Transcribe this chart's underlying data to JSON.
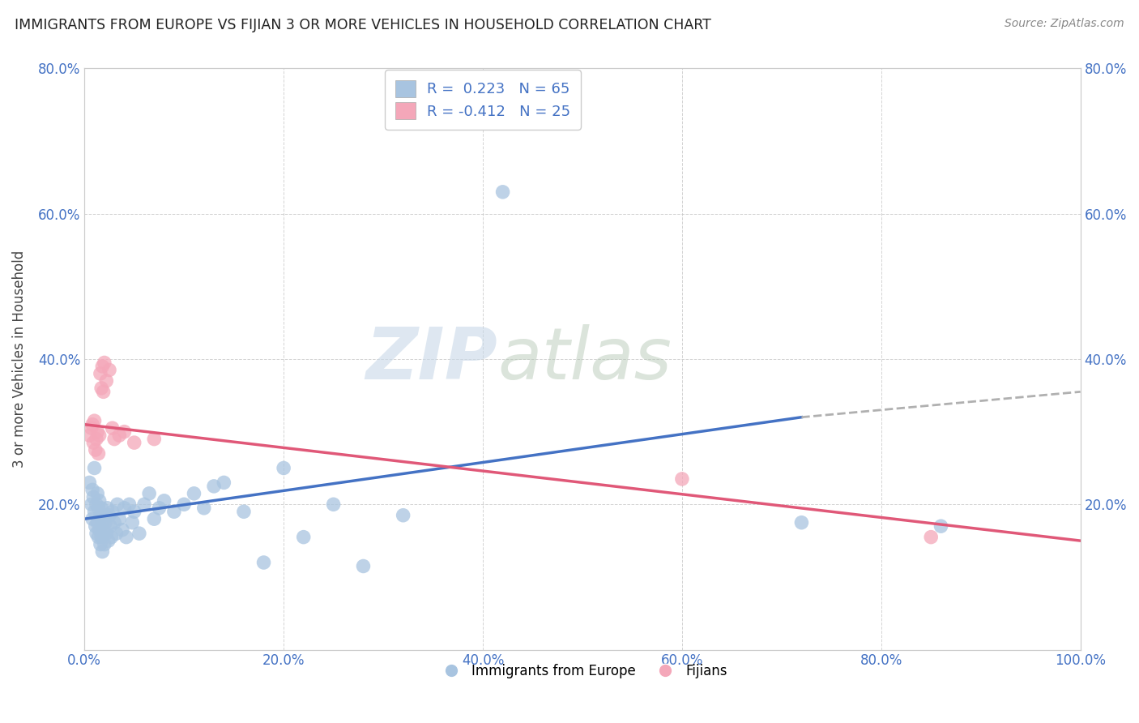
{
  "title": "IMMIGRANTS FROM EUROPE VS FIJIAN 3 OR MORE VEHICLES IN HOUSEHOLD CORRELATION CHART",
  "source": "Source: ZipAtlas.com",
  "ylabel": "3 or more Vehicles in Household",
  "xlim": [
    0,
    1.0
  ],
  "ylim": [
    0,
    0.8
  ],
  "xticks": [
    0.0,
    0.2,
    0.4,
    0.6,
    0.8,
    1.0
  ],
  "yticks": [
    0.0,
    0.2,
    0.4,
    0.6,
    0.8
  ],
  "xtick_labels": [
    "0.0%",
    "20.0%",
    "40.0%",
    "60.0%",
    "80.0%",
    "100.0%"
  ],
  "ytick_labels": [
    "",
    "20.0%",
    "40.0%",
    "60.0%",
    "80.0%"
  ],
  "legend_r1": "R =  0.223",
  "legend_n1": "N = 65",
  "legend_r2": "R = -0.412",
  "legend_n2": "N = 25",
  "color_blue": "#a8c4e0",
  "color_pink": "#f4a7b9",
  "color_blue_line": "#4472c4",
  "color_pink_line": "#e05878",
  "color_dashed_line": "#b0b0b0",
  "watermark_zip": "ZIP",
  "watermark_atlas": "atlas",
  "blue_scatter_x": [
    0.005,
    0.007,
    0.008,
    0.008,
    0.009,
    0.01,
    0.01,
    0.011,
    0.012,
    0.012,
    0.013,
    0.013,
    0.014,
    0.014,
    0.015,
    0.015,
    0.016,
    0.016,
    0.017,
    0.017,
    0.018,
    0.018,
    0.019,
    0.02,
    0.02,
    0.021,
    0.022,
    0.023,
    0.024,
    0.025,
    0.026,
    0.027,
    0.028,
    0.03,
    0.032,
    0.033,
    0.035,
    0.038,
    0.04,
    0.042,
    0.045,
    0.048,
    0.05,
    0.055,
    0.06,
    0.065,
    0.07,
    0.075,
    0.08,
    0.09,
    0.1,
    0.11,
    0.12,
    0.13,
    0.14,
    0.16,
    0.18,
    0.2,
    0.22,
    0.25,
    0.28,
    0.32,
    0.42,
    0.72,
    0.86
  ],
  "blue_scatter_y": [
    0.23,
    0.2,
    0.22,
    0.18,
    0.21,
    0.19,
    0.25,
    0.17,
    0.2,
    0.16,
    0.215,
    0.175,
    0.195,
    0.155,
    0.205,
    0.165,
    0.185,
    0.145,
    0.195,
    0.155,
    0.175,
    0.135,
    0.165,
    0.185,
    0.145,
    0.175,
    0.16,
    0.195,
    0.15,
    0.185,
    0.17,
    0.155,
    0.19,
    0.175,
    0.16,
    0.2,
    0.18,
    0.165,
    0.195,
    0.155,
    0.2,
    0.175,
    0.19,
    0.16,
    0.2,
    0.215,
    0.18,
    0.195,
    0.205,
    0.19,
    0.2,
    0.215,
    0.195,
    0.225,
    0.23,
    0.19,
    0.12,
    0.25,
    0.155,
    0.2,
    0.115,
    0.185,
    0.63,
    0.175,
    0.17
  ],
  "pink_scatter_x": [
    0.005,
    0.007,
    0.008,
    0.009,
    0.01,
    0.011,
    0.012,
    0.013,
    0.014,
    0.015,
    0.016,
    0.017,
    0.018,
    0.019,
    0.02,
    0.022,
    0.025,
    0.028,
    0.03,
    0.035,
    0.04,
    0.05,
    0.07,
    0.6,
    0.85
  ],
  "pink_scatter_y": [
    0.295,
    0.305,
    0.31,
    0.285,
    0.315,
    0.275,
    0.29,
    0.3,
    0.27,
    0.295,
    0.38,
    0.36,
    0.39,
    0.355,
    0.395,
    0.37,
    0.385,
    0.305,
    0.29,
    0.295,
    0.3,
    0.285,
    0.29,
    0.235,
    0.155
  ],
  "blue_line_x": [
    0.0,
    0.72
  ],
  "blue_line_y": [
    0.18,
    0.32
  ],
  "pink_line_x": [
    0.0,
    1.0
  ],
  "pink_line_y": [
    0.31,
    0.15
  ],
  "dashed_line_x": [
    0.72,
    1.0
  ],
  "dashed_line_y": [
    0.32,
    0.355
  ]
}
